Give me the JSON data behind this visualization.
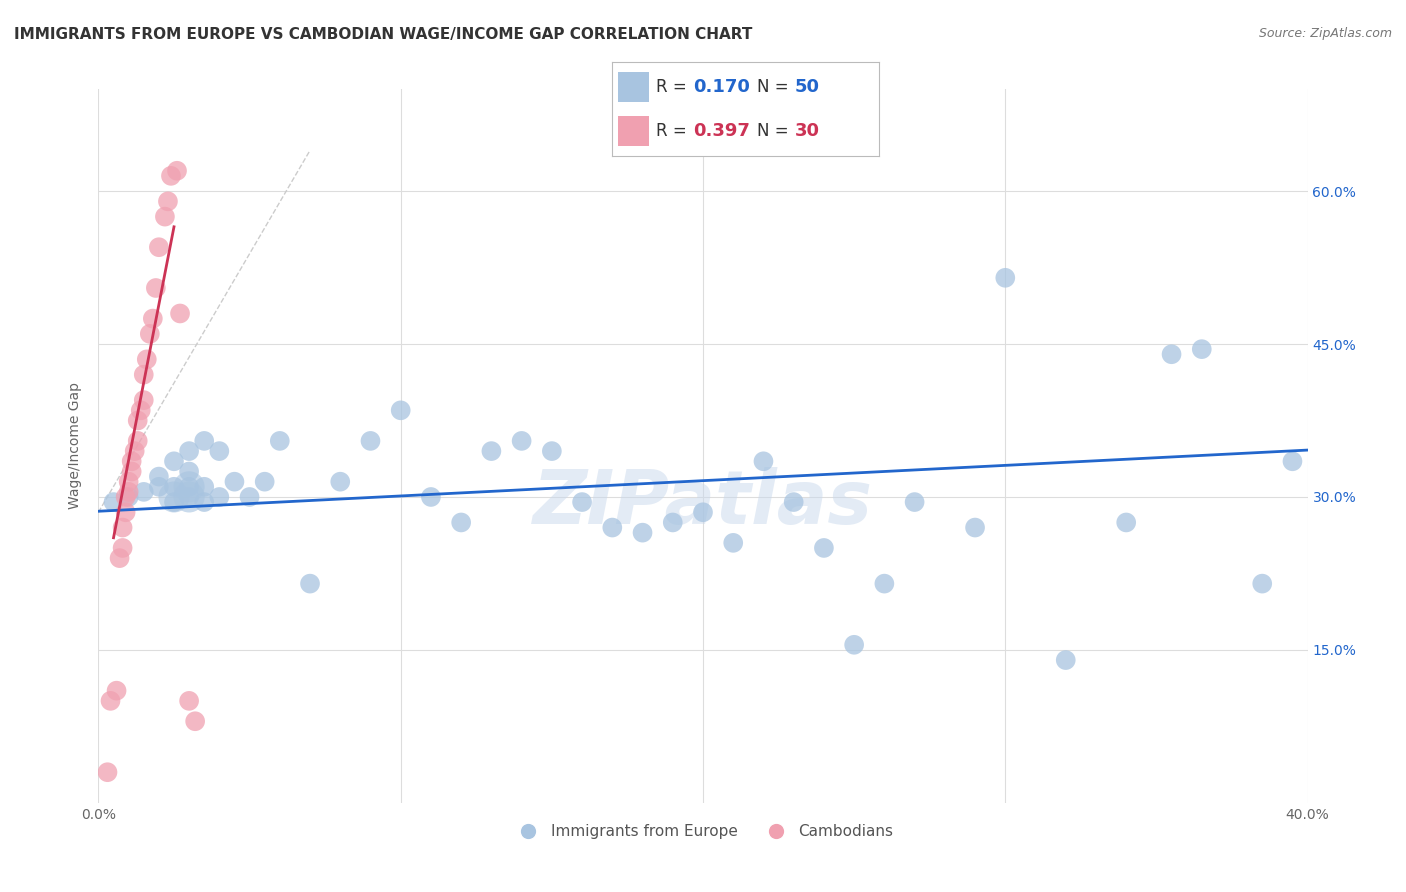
{
  "title": "IMMIGRANTS FROM EUROPE VS CAMBODIAN WAGE/INCOME GAP CORRELATION CHART",
  "source": "Source: ZipAtlas.com",
  "ylabel": "Wage/Income Gap",
  "xlim": [
    0.0,
    0.4
  ],
  "ylim": [
    0.0,
    0.7
  ],
  "yticks_right": [
    0.15,
    0.3,
    0.45,
    0.6
  ],
  "ytick_labels_right": [
    "15.0%",
    "30.0%",
    "45.0%",
    "60.0%"
  ],
  "blue_R": 0.17,
  "blue_N": 50,
  "pink_R": 0.397,
  "pink_N": 30,
  "blue_color": "#a8c4e0",
  "pink_color": "#f0a0b0",
  "blue_line_color": "#2266cc",
  "pink_line_color": "#cc3355",
  "diag_line_color": "#cccccc",
  "watermark": "ZIPatlas",
  "background_color": "#ffffff",
  "grid_color": "#dddddd",
  "blue_scatter_x": [
    0.005,
    0.01,
    0.015,
    0.02,
    0.02,
    0.025,
    0.025,
    0.025,
    0.03,
    0.03,
    0.03,
    0.03,
    0.035,
    0.035,
    0.035,
    0.04,
    0.04,
    0.045,
    0.05,
    0.055,
    0.06,
    0.07,
    0.08,
    0.09,
    0.1,
    0.11,
    0.12,
    0.13,
    0.14,
    0.15,
    0.16,
    0.17,
    0.18,
    0.19,
    0.2,
    0.21,
    0.22,
    0.23,
    0.24,
    0.25,
    0.26,
    0.27,
    0.29,
    0.3,
    0.32,
    0.34,
    0.355,
    0.365,
    0.385,
    0.395
  ],
  "blue_scatter_y": [
    0.295,
    0.3,
    0.305,
    0.31,
    0.32,
    0.295,
    0.31,
    0.335,
    0.3,
    0.31,
    0.325,
    0.345,
    0.295,
    0.31,
    0.355,
    0.3,
    0.345,
    0.315,
    0.3,
    0.315,
    0.355,
    0.215,
    0.315,
    0.355,
    0.385,
    0.3,
    0.275,
    0.345,
    0.355,
    0.345,
    0.295,
    0.27,
    0.265,
    0.275,
    0.285,
    0.255,
    0.335,
    0.295,
    0.25,
    0.155,
    0.215,
    0.295,
    0.27,
    0.515,
    0.14,
    0.275,
    0.44,
    0.445,
    0.215,
    0.335
  ],
  "pink_scatter_x": [
    0.003,
    0.004,
    0.006,
    0.007,
    0.008,
    0.008,
    0.009,
    0.009,
    0.01,
    0.01,
    0.011,
    0.011,
    0.012,
    0.013,
    0.013,
    0.014,
    0.015,
    0.015,
    0.016,
    0.017,
    0.018,
    0.019,
    0.02,
    0.022,
    0.023,
    0.024,
    0.026,
    0.027,
    0.03,
    0.032
  ],
  "pink_scatter_y": [
    0.03,
    0.1,
    0.11,
    0.24,
    0.25,
    0.27,
    0.285,
    0.3,
    0.305,
    0.315,
    0.325,
    0.335,
    0.345,
    0.355,
    0.375,
    0.385,
    0.395,
    0.42,
    0.435,
    0.46,
    0.475,
    0.505,
    0.545,
    0.575,
    0.59,
    0.615,
    0.62,
    0.48,
    0.1,
    0.08
  ],
  "blue_line_x": [
    0.0,
    0.4
  ],
  "blue_line_y": [
    0.286,
    0.346
  ],
  "pink_line_x": [
    0.005,
    0.025
  ],
  "pink_line_y": [
    0.26,
    0.565
  ],
  "diag_line_x": [
    0.0,
    0.07
  ],
  "diag_line_y": [
    0.285,
    0.64
  ]
}
